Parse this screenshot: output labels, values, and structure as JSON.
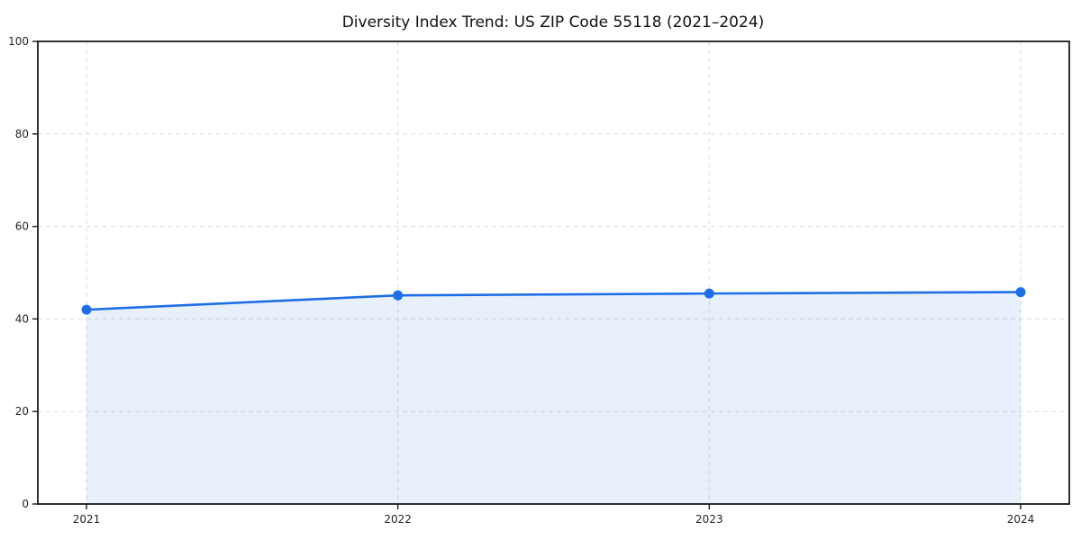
{
  "chart_data": {
    "type": "area",
    "title": "Diversity Index Trend: US ZIP Code 55118 (2021–2024)",
    "x": [
      2021,
      2022,
      2023,
      2024
    ],
    "series": [
      {
        "name": "Diversity Index",
        "values": [
          42.0,
          45.1,
          45.5,
          45.8
        ]
      }
    ],
    "xlabel": "",
    "ylabel": "",
    "ylim": [
      0,
      100
    ],
    "yticks": [
      0,
      20,
      40,
      60,
      80,
      100
    ],
    "xticks": [
      "2021",
      "2022",
      "2023",
      "2024"
    ],
    "grid": true,
    "grid_style": "dashed",
    "grid_color": "#dcdcdc",
    "legend_position": "none",
    "line_color": "#1f6ee6",
    "marker_color": "#1f6ee6",
    "fill_color": "#1f6ee6",
    "fill_opacity": 0.1,
    "axis_color": "#1a1a1a"
  }
}
